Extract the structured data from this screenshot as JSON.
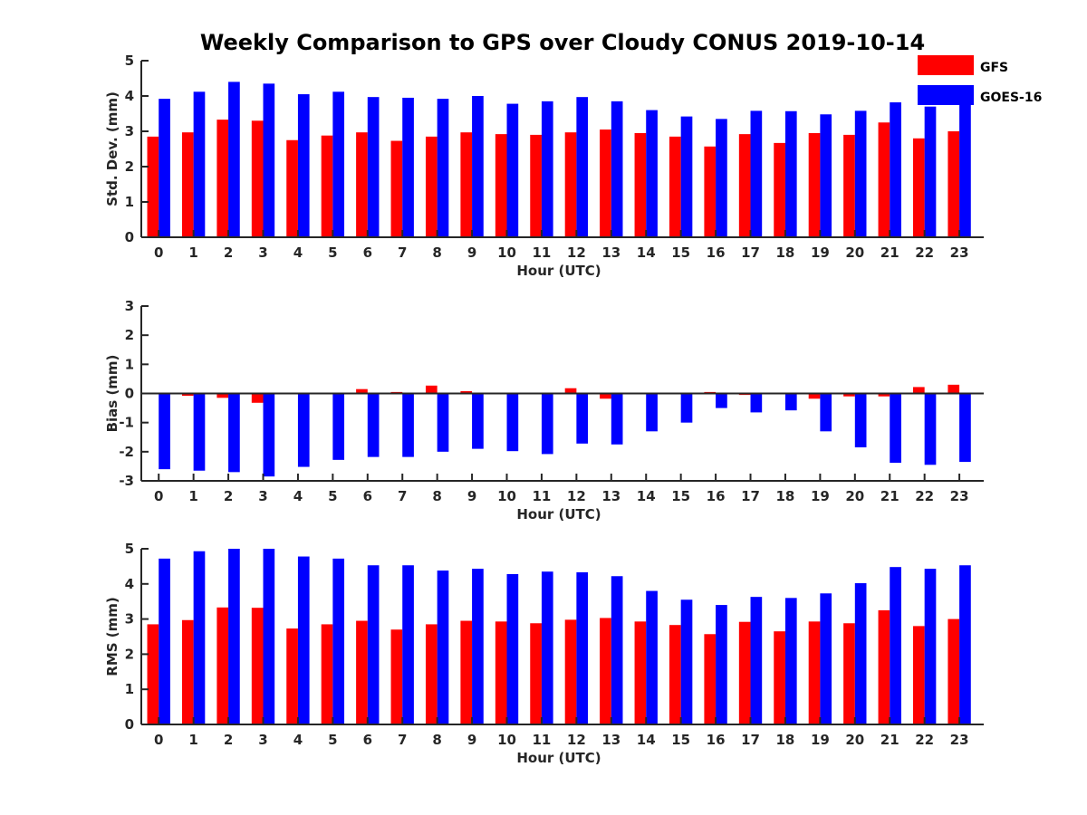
{
  "title": "Weekly Comparison to GPS over Cloudy CONUS 2019-10-14",
  "legend": [
    {
      "name": "GFS",
      "color": "#ff0000"
    },
    {
      "name": "GOES-16",
      "color": "#0000ff"
    }
  ],
  "chart_data": [
    {
      "type": "bar",
      "xlabel": "Hour (UTC)",
      "ylabel": "Std. Dev. (mm)",
      "ylim": [
        0,
        5
      ],
      "yticks": [
        0,
        1,
        2,
        3,
        4,
        5
      ],
      "categories": [
        "0",
        "1",
        "2",
        "3",
        "4",
        "5",
        "6",
        "7",
        "8",
        "9",
        "10",
        "11",
        "12",
        "13",
        "14",
        "15",
        "16",
        "17",
        "18",
        "19",
        "20",
        "21",
        "22",
        "23"
      ],
      "series": [
        {
          "name": "GFS",
          "color": "#ff0000",
          "values": [
            2.85,
            2.97,
            3.33,
            3.3,
            2.75,
            2.88,
            2.97,
            2.73,
            2.85,
            2.97,
            2.92,
            2.9,
            2.97,
            3.05,
            2.95,
            2.85,
            2.57,
            2.92,
            2.67,
            2.95,
            2.9,
            3.25,
            2.8,
            3.0
          ]
        },
        {
          "name": "GOES-16",
          "color": "#0000ff",
          "values": [
            3.92,
            4.12,
            4.4,
            4.35,
            4.05,
            4.12,
            3.97,
            3.95,
            3.92,
            4.0,
            3.78,
            3.85,
            3.97,
            3.85,
            3.6,
            3.42,
            3.35,
            3.58,
            3.57,
            3.48,
            3.58,
            3.82,
            3.7,
            3.9
          ]
        }
      ]
    },
    {
      "type": "bar",
      "xlabel": "Hour (UTC)",
      "ylabel": "Bias (mm)",
      "ylim": [
        -3,
        3
      ],
      "yticks": [
        -3,
        -2,
        -1,
        0,
        1,
        2,
        3
      ],
      "categories": [
        "0",
        "1",
        "2",
        "3",
        "4",
        "5",
        "6",
        "7",
        "8",
        "9",
        "10",
        "11",
        "12",
        "13",
        "14",
        "15",
        "16",
        "17",
        "18",
        "19",
        "20",
        "21",
        "22",
        "23"
      ],
      "series": [
        {
          "name": "GFS",
          "color": "#ff0000",
          "values": [
            -0.03,
            -0.08,
            -0.15,
            -0.32,
            -0.03,
            0.0,
            0.15,
            0.05,
            0.27,
            0.08,
            0.0,
            0.0,
            0.18,
            -0.18,
            0.0,
            0.0,
            0.05,
            -0.05,
            0.02,
            -0.18,
            -0.1,
            -0.1,
            0.22,
            0.3
          ]
        },
        {
          "name": "GOES-16",
          "color": "#0000ff",
          "values": [
            -2.6,
            -2.65,
            -2.7,
            -2.85,
            -2.52,
            -2.28,
            -2.18,
            -2.18,
            -2.0,
            -1.9,
            -1.98,
            -2.08,
            -1.72,
            -1.75,
            -1.3,
            -1.0,
            -0.5,
            -0.65,
            -0.58,
            -1.3,
            -1.85,
            -2.38,
            -2.45,
            -2.35
          ]
        }
      ]
    },
    {
      "type": "bar",
      "xlabel": "Hour (UTC)",
      "ylabel": "RMS (mm)",
      "ylim": [
        0,
        5
      ],
      "yticks": [
        0,
        1,
        2,
        3,
        4,
        5
      ],
      "categories": [
        "0",
        "1",
        "2",
        "3",
        "4",
        "5",
        "6",
        "7",
        "8",
        "9",
        "10",
        "11",
        "12",
        "13",
        "14",
        "15",
        "16",
        "17",
        "18",
        "19",
        "20",
        "21",
        "22",
        "23"
      ],
      "series": [
        {
          "name": "GFS",
          "color": "#ff0000",
          "values": [
            2.85,
            2.97,
            3.33,
            3.32,
            2.73,
            2.85,
            2.95,
            2.7,
            2.85,
            2.95,
            2.93,
            2.88,
            2.98,
            3.03,
            2.93,
            2.83,
            2.57,
            2.92,
            2.65,
            2.93,
            2.88,
            3.25,
            2.8,
            3.0
          ]
        },
        {
          "name": "GOES-16",
          "color": "#0000ff",
          "values": [
            4.72,
            4.93,
            5.0,
            5.0,
            4.78,
            4.72,
            4.53,
            4.53,
            4.38,
            4.43,
            4.28,
            4.35,
            4.33,
            4.22,
            3.8,
            3.55,
            3.4,
            3.63,
            3.6,
            3.73,
            4.02,
            4.48,
            4.43,
            4.53
          ]
        }
      ]
    }
  ]
}
